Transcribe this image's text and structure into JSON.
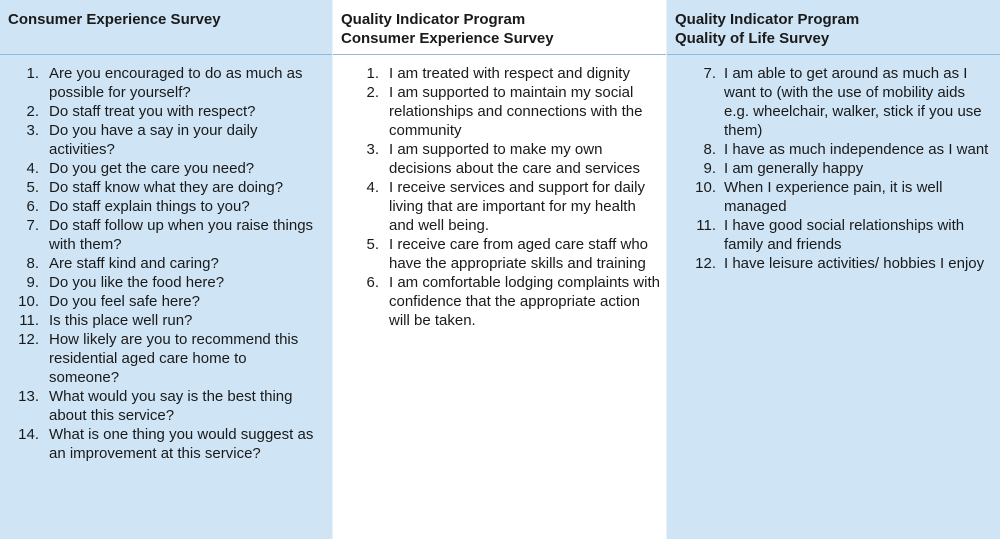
{
  "columns": [
    {
      "title_lines": [
        "Consumer Experience Survey"
      ],
      "items": [
        {
          "num": "1.",
          "text": "Are you encouraged to do as much as possible for yourself?"
        },
        {
          "num": "2.",
          "text": "Do staff treat you with respect?"
        },
        {
          "num": "3.",
          "text": "Do you have a say in your daily activities?"
        },
        {
          "num": "4.",
          "text": "Do you get the care you need?"
        },
        {
          "num": "5.",
          "text": "Do staff know what they are doing?"
        },
        {
          "num": "6.",
          "text": "Do staff explain things to you?"
        },
        {
          "num": "7.",
          "text": "Do staff follow up when you raise things with them?"
        },
        {
          "num": "8.",
          "text": "Are staff kind and caring?"
        },
        {
          "num": "9.",
          "text": "Do you like the food here?"
        },
        {
          "num": "10.",
          "text": "Do you feel safe here?"
        },
        {
          "num": "11.",
          "text": "Is this place well run?"
        },
        {
          "num": "12.",
          "text": "How likely are you to recommend this residential aged care home to someone?"
        },
        {
          "num": "13.",
          "text": "What would you say is the best thing about this service?"
        },
        {
          "num": "14.",
          "text": "What is one thing you would suggest as an improvement at this service?"
        }
      ]
    },
    {
      "title_lines": [
        "Quality Indicator Program",
        "Consumer Experience Survey"
      ],
      "items": [
        {
          "num": "1.",
          "text": "I am treated with respect and dignity"
        },
        {
          "num": "2.",
          "text": "I am supported to maintain my social relationships and connections with the community"
        },
        {
          "num": "3.",
          "text": "I am supported to make my own decisions about the care and services"
        },
        {
          "num": "4.",
          "text": "I receive services and support for daily living that are important for my health and well being."
        },
        {
          "num": "5.",
          "text": "I receive care from aged care staff who have the appropriate skills and training"
        },
        {
          "num": "6.",
          "text": "I am comfortable lodging complaints with confidence that the appropriate action will be taken."
        }
      ]
    },
    {
      "title_lines": [
        "Quality Indicator Program",
        "Quality of Life Survey"
      ],
      "items": [
        {
          "num": "7.",
          "text": "I am able to get around as much as I want to (with the use of mobility aids e.g. wheelchair, walker, stick if you use them)"
        },
        {
          "num": "8.",
          "text": "I have as much independence as I want"
        },
        {
          "num": "9.",
          "text": "I am generally happy"
        },
        {
          "num": "10.",
          "text": "When I experience pain, it is well managed"
        },
        {
          "num": "11.",
          "text": "I have good social relationships with family and friends"
        },
        {
          "num": "12.",
          "text": "I have leisure activities/ hobbies I enjoy"
        }
      ]
    }
  ]
}
